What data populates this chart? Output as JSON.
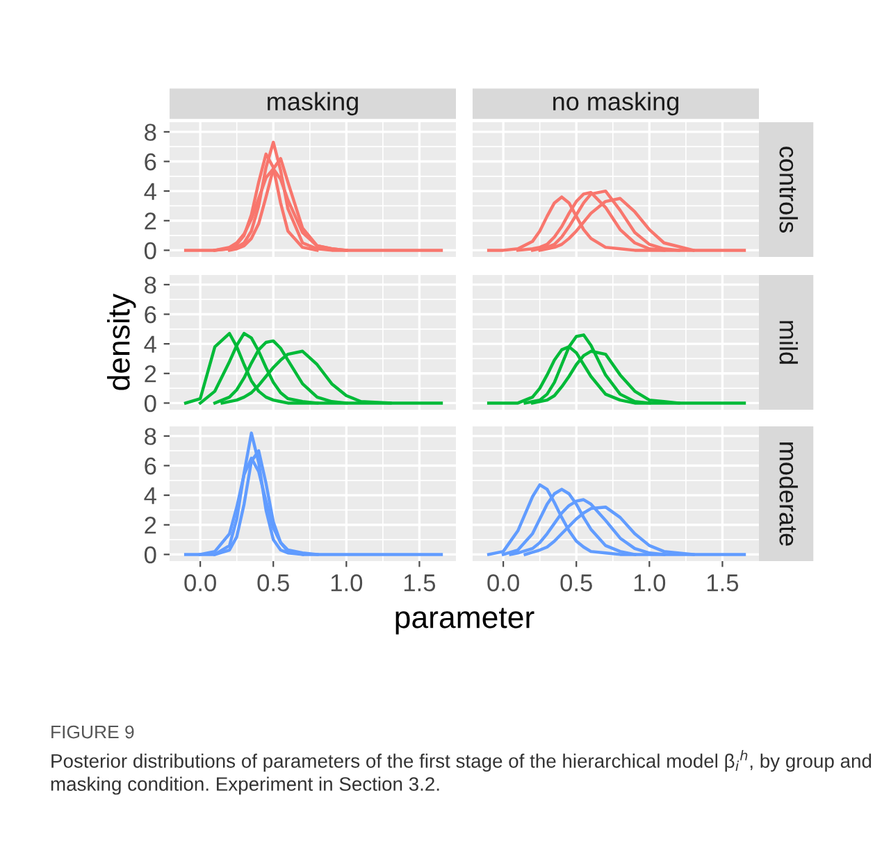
{
  "chart_data": [
    {
      "type": "line",
      "title": "masking",
      "tick_labels": "y",
      "grid": true,
      "xlim": [
        -0.21,
        1.75
      ],
      "ylim": [
        -0.45,
        8.65
      ],
      "xticks": [
        0,
        0.5,
        1,
        1.5
      ],
      "yticks": [
        0,
        2,
        4,
        6,
        8
      ],
      "x": [
        -0.1,
        0,
        0.1,
        0.2,
        0.25,
        0.3,
        0.35,
        0.4,
        0.45,
        0.5,
        0.55,
        0.6,
        0.7,
        0.8,
        0.9,
        1.0,
        1.1,
        1.65
      ],
      "series": [
        {
          "color": "#f8766d",
          "values": [
            0,
            0,
            0,
            0.1,
            0.2,
            0.5,
            1.3,
            3.0,
            5.6,
            7.3,
            5.4,
            2.8,
            0.5,
            0.1,
            0,
            0,
            0,
            0
          ]
        },
        {
          "color": "#f8766d",
          "x": [
            0.1,
            0.2,
            0.25,
            0.3,
            0.35,
            0.4,
            0.45,
            0.5,
            0.55,
            0.6,
            0.7,
            0.8
          ],
          "values": [
            0,
            0.1,
            0.4,
            1.0,
            2.4,
            4.6,
            6.5,
            5.6,
            3.2,
            1.3,
            0.2,
            0
          ]
        },
        {
          "color": "#f8766d",
          "x": [
            0.2,
            0.25,
            0.3,
            0.35,
            0.4,
            0.45,
            0.5,
            0.55,
            0.6,
            0.7,
            0.8,
            0.9,
            1.0
          ],
          "values": [
            0,
            0.1,
            0.3,
            0.8,
            1.8,
            3.6,
            5.5,
            6.2,
            4.6,
            1.5,
            0.3,
            0.1,
            0
          ]
        },
        {
          "color": "#f8766d",
          "x": [
            0.1,
            0.2,
            0.25,
            0.3,
            0.35,
            0.4,
            0.45,
            0.5,
            0.55,
            0.6,
            0.7,
            0.8,
            0.9,
            1.0
          ],
          "values": [
            0,
            0.2,
            0.5,
            1.1,
            2.1,
            3.5,
            4.9,
            5.5,
            4.8,
            3.4,
            1.2,
            0.3,
            0.1,
            0
          ]
        }
      ]
    },
    {
      "type": "line",
      "title": "no masking",
      "y2label": "controls",
      "tick_labels": false,
      "grid": true,
      "xlim": [
        -0.21,
        1.75
      ],
      "ylim": [
        -0.45,
        8.65
      ],
      "xticks": [
        0,
        0.5,
        1,
        1.5
      ],
      "yticks": [
        0,
        2,
        4,
        6,
        8
      ],
      "x": [
        -0.1,
        0,
        0.1,
        0.2,
        0.25,
        0.3,
        0.35,
        0.4,
        0.45,
        0.5,
        0.55,
        0.6,
        0.7,
        0.8,
        0.9,
        1.0,
        1.1,
        1.65
      ],
      "series": [
        {
          "color": "#f8766d",
          "values": [
            0,
            0,
            0.1,
            0.6,
            1.3,
            2.3,
            3.2,
            3.6,
            3.2,
            2.3,
            1.4,
            0.8,
            0.2,
            0.1,
            0,
            0,
            0,
            0
          ]
        },
        {
          "color": "#f8766d",
          "x": [
            0.1,
            0.2,
            0.25,
            0.3,
            0.35,
            0.4,
            0.45,
            0.5,
            0.55,
            0.6,
            0.7,
            0.8,
            0.9,
            1.0,
            1.1
          ],
          "values": [
            0,
            0.1,
            0.2,
            0.4,
            0.9,
            1.6,
            2.5,
            3.3,
            3.8,
            3.9,
            2.9,
            1.4,
            0.5,
            0.1,
            0
          ]
        },
        {
          "color": "#f8766d",
          "x": [
            0.2,
            0.25,
            0.3,
            0.35,
            0.4,
            0.45,
            0.5,
            0.55,
            0.6,
            0.7,
            0.8,
            0.9,
            1.0,
            1.1,
            1.2
          ],
          "values": [
            0,
            0.1,
            0.2,
            0.4,
            0.9,
            1.6,
            2.4,
            3.2,
            3.8,
            4.0,
            2.7,
            1.2,
            0.4,
            0.1,
            0
          ]
        },
        {
          "color": "#f8766d",
          "x": [
            0.25,
            0.3,
            0.35,
            0.4,
            0.45,
            0.5,
            0.55,
            0.6,
            0.7,
            0.8,
            0.9,
            1.0,
            1.1,
            1.3
          ],
          "values": [
            0,
            0.1,
            0.2,
            0.4,
            0.8,
            1.3,
            1.9,
            2.5,
            3.3,
            3.5,
            2.6,
            1.4,
            0.5,
            0
          ]
        }
      ]
    },
    {
      "type": "line",
      "ylabel": "density",
      "tick_labels": "y",
      "grid": true,
      "xlim": [
        -0.21,
        1.75
      ],
      "ylim": [
        -0.45,
        8.65
      ],
      "xticks": [
        0,
        0.5,
        1,
        1.5
      ],
      "yticks": [
        0,
        2,
        4,
        6,
        8
      ],
      "x": [
        -0.1,
        0,
        0.1,
        0.2,
        0.25,
        0.3,
        0.35,
        0.4,
        0.45,
        0.5,
        0.55,
        0.6,
        0.7,
        0.8,
        0.9,
        1.0,
        1.1,
        1.65
      ],
      "series": [
        {
          "color": "#00ba38",
          "values": [
            0,
            0.3,
            3.8,
            4.7,
            3.8,
            2.6,
            1.5,
            0.8,
            0.4,
            0.2,
            0.1,
            0,
            0,
            0,
            0,
            0,
            0,
            0
          ]
        },
        {
          "color": "#00ba38",
          "x": [
            0,
            0.1,
            0.2,
            0.25,
            0.3,
            0.35,
            0.4,
            0.45,
            0.5,
            0.55,
            0.6,
            0.7,
            0.8
          ],
          "values": [
            0,
            0.8,
            2.8,
            3.9,
            4.7,
            4.4,
            3.5,
            2.4,
            1.4,
            0.7,
            0.3,
            0.1,
            0
          ]
        },
        {
          "color": "#00ba38",
          "x": [
            0.1,
            0.2,
            0.25,
            0.3,
            0.35,
            0.4,
            0.45,
            0.5,
            0.55,
            0.6,
            0.7,
            0.8,
            0.9,
            1.0
          ],
          "values": [
            0,
            0.4,
            0.9,
            1.7,
            2.7,
            3.6,
            4.1,
            4.2,
            3.7,
            2.9,
            1.3,
            0.4,
            0.1,
            0
          ]
        },
        {
          "color": "#00ba38",
          "x": [
            0.15,
            0.25,
            0.3,
            0.35,
            0.4,
            0.45,
            0.5,
            0.55,
            0.6,
            0.7,
            0.8,
            0.9,
            1.0,
            1.1,
            1.3
          ],
          "values": [
            0,
            0.2,
            0.4,
            0.7,
            1.2,
            1.8,
            2.4,
            2.9,
            3.3,
            3.5,
            2.6,
            1.3,
            0.5,
            0.1,
            0
          ]
        }
      ]
    },
    {
      "type": "line",
      "y2label": "mild",
      "tick_labels": false,
      "grid": true,
      "xlim": [
        -0.21,
        1.75
      ],
      "ylim": [
        -0.45,
        8.65
      ],
      "xticks": [
        0,
        0.5,
        1,
        1.5
      ],
      "yticks": [
        0,
        2,
        4,
        6,
        8
      ],
      "x": [
        -0.1,
        0,
        0.1,
        0.2,
        0.25,
        0.3,
        0.35,
        0.4,
        0.45,
        0.5,
        0.55,
        0.6,
        0.7,
        0.8,
        0.9,
        1.0,
        1.1,
        1.65
      ],
      "series": [
        {
          "color": "#00ba38",
          "values": [
            0,
            0,
            0,
            0.4,
            1.0,
            1.9,
            2.9,
            3.6,
            3.8,
            3.4,
            2.6,
            1.8,
            0.6,
            0.2,
            0,
            0,
            0,
            0
          ]
        },
        {
          "color": "#00ba38",
          "x": [
            0.15,
            0.25,
            0.3,
            0.35,
            0.4,
            0.45,
            0.5,
            0.55,
            0.6,
            0.7,
            0.8,
            0.9,
            1.0
          ],
          "values": [
            0,
            0.2,
            0.6,
            1.4,
            2.6,
            3.8,
            4.5,
            4.6,
            3.9,
            1.9,
            0.6,
            0.1,
            0
          ]
        },
        {
          "color": "#00ba38",
          "x": [
            0.2,
            0.3,
            0.35,
            0.4,
            0.45,
            0.5,
            0.55,
            0.6,
            0.7,
            0.8,
            0.9,
            1.0,
            1.1,
            1.2
          ],
          "values": [
            0,
            0.2,
            0.5,
            1.1,
            1.8,
            2.6,
            3.2,
            3.5,
            3.3,
            1.9,
            0.8,
            0.2,
            0.1,
            0
          ]
        }
      ]
    },
    {
      "type": "line",
      "xlabel": "parameter",
      "grid": true,
      "xlim": [
        -0.21,
        1.75
      ],
      "ylim": [
        -0.45,
        8.65
      ],
      "xticks": [
        {
          "value": 0,
          "label": "0.0"
        },
        {
          "value": 0.5,
          "label": "0.5"
        },
        {
          "value": 1,
          "label": "1.0"
        },
        {
          "value": 1.5,
          "label": "1.5"
        }
      ],
      "yticks": [
        0,
        2,
        4,
        6,
        8
      ],
      "x": [
        -0.1,
        0,
        0.1,
        0.2,
        0.25,
        0.3,
        0.35,
        0.4,
        0.45,
        0.5,
        0.55,
        0.6,
        0.7,
        0.8,
        0.9,
        1.0,
        1.1,
        1.65
      ],
      "series": [
        {
          "color": "#619cff",
          "values": [
            0,
            0,
            0,
            0.6,
            2.4,
            5.5,
            8.2,
            6.2,
            3.0,
            1.0,
            0.3,
            0.1,
            0,
            0,
            0,
            0,
            0,
            0
          ]
        },
        {
          "color": "#619cff",
          "x": [
            0,
            0.1,
            0.2,
            0.25,
            0.3,
            0.35,
            0.4,
            0.45,
            0.5,
            0.55,
            0.6,
            0.7,
            0.8
          ],
          "values": [
            0,
            0.2,
            1.4,
            3.2,
            5.4,
            6.5,
            5.6,
            3.6,
            1.8,
            0.8,
            0.3,
            0.1,
            0
          ]
        },
        {
          "color": "#619cff",
          "x": [
            0.1,
            0.2,
            0.25,
            0.3,
            0.35,
            0.4,
            0.45,
            0.5,
            0.55,
            0.6,
            0.7
          ],
          "values": [
            0,
            0.3,
            1.2,
            3.4,
            6.3,
            7.0,
            4.8,
            2.2,
            0.8,
            0.2,
            0
          ]
        }
      ]
    },
    {
      "type": "line",
      "y2label": "moderate",
      "tick_labels": "x",
      "grid": true,
      "xlim": [
        -0.21,
        1.75
      ],
      "ylim": [
        -0.45,
        8.65
      ],
      "xticks": [
        {
          "value": 0,
          "label": "0.0"
        },
        {
          "value": 0.5,
          "label": "0.5"
        },
        {
          "value": 1,
          "label": "1.0"
        },
        {
          "value": 1.5,
          "label": "1.5"
        }
      ],
      "yticks": [
        0,
        2,
        4,
        6,
        8
      ],
      "x": [
        -0.1,
        0,
        0.1,
        0.2,
        0.25,
        0.3,
        0.35,
        0.4,
        0.45,
        0.5,
        0.55,
        0.6,
        0.7,
        0.8,
        0.9,
        1.0,
        1.1,
        1.65
      ],
      "series": [
        {
          "color": "#619cff",
          "values": [
            0,
            0.2,
            1.6,
            3.9,
            4.7,
            4.4,
            3.5,
            2.5,
            1.6,
            0.9,
            0.5,
            0.2,
            0.1,
            0,
            0,
            0,
            0,
            0
          ]
        },
        {
          "color": "#619cff",
          "x": [
            0,
            0.1,
            0.2,
            0.25,
            0.3,
            0.35,
            0.4,
            0.45,
            0.5,
            0.55,
            0.6,
            0.7,
            0.8,
            0.9
          ],
          "values": [
            0,
            0.3,
            1.4,
            2.4,
            3.4,
            4.1,
            4.4,
            4.1,
            3.4,
            2.5,
            1.7,
            0.6,
            0.2,
            0
          ]
        },
        {
          "color": "#619cff",
          "x": [
            0.05,
            0.1,
            0.2,
            0.25,
            0.3,
            0.35,
            0.4,
            0.45,
            0.5,
            0.55,
            0.6,
            0.7,
            0.8,
            0.9,
            1.0,
            1.1
          ],
          "values": [
            0,
            0.1,
            0.4,
            0.8,
            1.4,
            2.1,
            2.8,
            3.3,
            3.6,
            3.7,
            3.4,
            2.3,
            1.1,
            0.4,
            0.1,
            0
          ]
        },
        {
          "color": "#619cff",
          "x": [
            0.15,
            0.25,
            0.3,
            0.35,
            0.4,
            0.45,
            0.5,
            0.55,
            0.6,
            0.7,
            0.8,
            0.9,
            1.0,
            1.1,
            1.3
          ],
          "values": [
            0,
            0.3,
            0.5,
            0.9,
            1.4,
            1.9,
            2.4,
            2.8,
            3.1,
            3.2,
            2.5,
            1.4,
            0.6,
            0.2,
            0
          ]
        }
      ],
      "annotations": [
        "FIGURE 9",
        "Posterior distributions of parameters of the first stage of the hierarchical model β$_{i}$$^{h}$, by group and masking condition. Experiment in Section 3.2."
      ]
    }
  ]
}
